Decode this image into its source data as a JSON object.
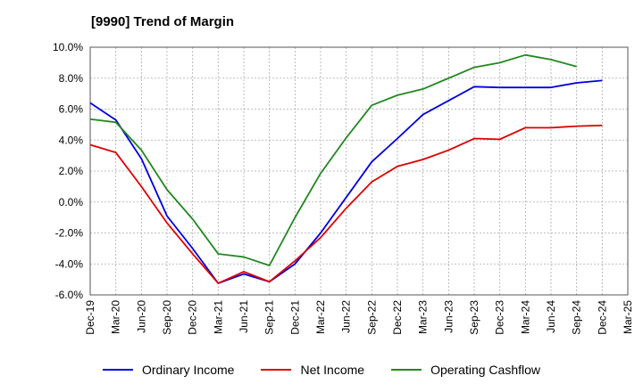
{
  "chart_data": {
    "type": "line",
    "title": "[9990]  Trend of Margin",
    "xlabel": "",
    "ylabel": "",
    "categories": [
      "Dec-19",
      "Mar-20",
      "Jun-20",
      "Sep-20",
      "Dec-20",
      "Mar-21",
      "Jun-21",
      "Sep-21",
      "Dec-21",
      "Mar-22",
      "Jun-22",
      "Sep-22",
      "Dec-22",
      "Mar-23",
      "Jun-23",
      "Sep-23",
      "Dec-23",
      "Mar-24",
      "Jun-24",
      "Sep-24",
      "Dec-24",
      "Mar-25"
    ],
    "ylim": [
      -6.0,
      10.0
    ],
    "yticks": [
      "10.0%",
      "8.0%",
      "6.0%",
      "4.0%",
      "2.0%",
      "0.0%",
      "-2.0%",
      "-4.0%",
      "-6.0%"
    ],
    "ytick_values": [
      10,
      8,
      6,
      4,
      2,
      0,
      -2,
      -4,
      -6
    ],
    "grid": true,
    "legend_position": "bottom",
    "series": [
      {
        "name": "Ordinary Income",
        "color": "#0000dd",
        "values": [
          6.4,
          5.3,
          2.8,
          -0.9,
          -3.0,
          -5.25,
          -4.65,
          -5.15,
          -4.0,
          -2.0,
          0.3,
          2.6,
          4.1,
          5.65,
          6.55,
          7.45,
          7.4,
          7.4,
          7.4,
          7.7,
          7.85,
          null
        ]
      },
      {
        "name": "Net Income",
        "color": "#dd0000",
        "values": [
          3.7,
          3.2,
          1.0,
          -1.35,
          -3.35,
          -5.25,
          -4.5,
          -5.15,
          -3.8,
          -2.3,
          -0.4,
          1.3,
          2.3,
          2.75,
          3.35,
          4.1,
          4.05,
          4.8,
          4.8,
          4.9,
          4.95,
          null
        ]
      },
      {
        "name": "Operating Cashflow",
        "color": "#228822",
        "values": [
          5.35,
          5.15,
          3.35,
          0.8,
          -1.1,
          -3.35,
          -3.55,
          -4.1,
          -1.0,
          1.85,
          4.15,
          6.25,
          6.9,
          7.3,
          8.0,
          8.7,
          9.0,
          9.5,
          9.2,
          8.75,
          null,
          null
        ]
      }
    ]
  }
}
